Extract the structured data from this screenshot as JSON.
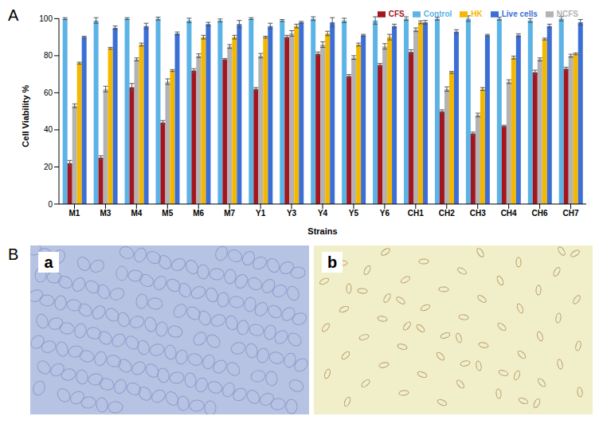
{
  "chart_data": {
    "type": "bar",
    "x_label": "Strains",
    "y_label": "Cell Viability %",
    "categories": [
      "M1",
      "M3",
      "M4",
      "M5",
      "M6",
      "M7",
      "Y1",
      "Y3",
      "Y4",
      "Y5",
      "Y6",
      "CH1",
      "CH2",
      "CH3",
      "CH4",
      "CH6",
      "CH7"
    ],
    "series": [
      {
        "name": "Control",
        "color": "#5cb3e6",
        "values": [
          100,
          99,
          100,
          100,
          99,
          99,
          100,
          99,
          100,
          99,
          99,
          100,
          100,
          100,
          100,
          99,
          100
        ],
        "errors": [
          0.5,
          1.5,
          0.5,
          0.8,
          1.2,
          0.8,
          0.5,
          0.5,
          1,
          1.2,
          2,
          1,
          0.8,
          1.5,
          0.8,
          1,
          1.2
        ]
      },
      {
        "name": "CFS",
        "color": "#a3161f",
        "values": [
          22,
          25,
          63,
          44,
          72,
          78,
          62,
          90,
          81,
          69,
          75,
          82,
          50,
          38,
          42,
          71,
          73
        ],
        "errors": [
          1.5,
          1,
          2,
          1,
          1,
          0.5,
          0.8,
          1,
          1,
          0.8,
          0.8,
          1.2,
          0.8,
          0.8,
          0.5,
          1.2,
          0.8
        ]
      },
      {
        "name": "NCFS",
        "color": "#b3b3b3",
        "values": [
          53,
          62,
          78,
          66,
          80,
          85,
          80,
          92,
          86,
          79,
          85,
          94,
          62,
          48,
          66,
          78,
          80
        ],
        "errors": [
          1,
          1.5,
          0.8,
          1.5,
          1,
          1,
          1.2,
          1.5,
          1.5,
          1,
          1.5,
          1,
          1.2,
          1,
          1,
          0.8,
          0.8
        ]
      },
      {
        "name": "HK",
        "color": "#f5b800",
        "values": [
          76,
          84,
          86,
          72,
          90,
          90,
          90,
          96,
          92,
          86,
          90,
          98,
          71,
          62,
          79,
          89,
          81
        ],
        "errors": [
          0.5,
          0.5,
          0.8,
          0.5,
          1,
          1,
          0.5,
          1,
          1.2,
          0.8,
          1.5,
          0.8,
          0.5,
          0.8,
          0.8,
          0.5,
          0.5
        ]
      },
      {
        "name": "Live cells",
        "color": "#3b6fd6",
        "values": [
          90,
          95,
          96,
          92,
          97,
          97,
          96,
          98,
          98,
          91,
          96,
          98,
          93,
          91,
          91,
          96,
          98
        ],
        "errors": [
          0.5,
          1,
          1.5,
          0.8,
          1,
          2,
          1.5,
          0.5,
          2.5,
          0.5,
          1,
          1,
          1,
          0.5,
          0.8,
          1,
          1.5
        ]
      }
    ],
    "ylim": [
      0,
      100
    ],
    "yticks": [
      0,
      20,
      40,
      60,
      80,
      100
    ],
    "grid": false,
    "legend": "upper right"
  },
  "panel_labels": [
    "A",
    "B"
  ],
  "images": [
    {
      "label": "a"
    },
    {
      "label": "b"
    }
  ]
}
